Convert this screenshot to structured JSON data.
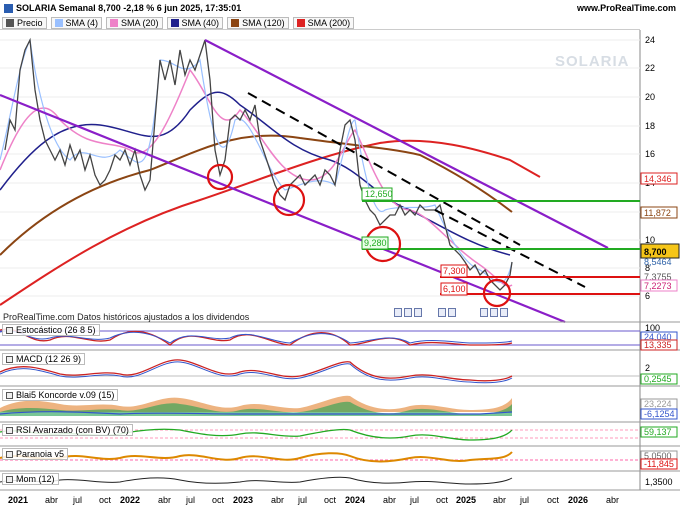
{
  "header": {
    "title": "SOLARIA Semanal 8,700 -2,18 % 6 jun 2025, 17:35:01",
    "site": "www.ProRealTime.com"
  },
  "legend": [
    {
      "label": "Precio",
      "color": "#555555"
    },
    {
      "label": "SMA (4)",
      "color": "#9ac0ff"
    },
    {
      "label": "SMA (20)",
      "color": "#ee82c8"
    },
    {
      "label": "SMA (40)",
      "color": "#20208c"
    },
    {
      "label": "SMA (120)",
      "color": "#8b4513"
    },
    {
      "label": "SMA (200)",
      "color": "#dd2222"
    }
  ],
  "watermark": "SOLARIA",
  "data_source": "ProRealTime.com Datos históricos ajustados a los dividendos",
  "price_axis": [
    "24",
    "22",
    "20",
    "18",
    "16",
    "14",
    "12",
    "10",
    "8",
    "6"
  ],
  "price_tags": {
    "last": "8,700",
    "sma4": "8,5464",
    "sma20": "7,2273",
    "sma20b": "7,3755",
    "sma200": "14,346",
    "sma120": "11,872"
  },
  "annotations": {
    "level_12650": "12,650",
    "level_9280": "9,280",
    "level_7300": "7,300",
    "level_6100": "6,100"
  },
  "panels": [
    {
      "title": "Estocástico (26 8 5)",
      "axis_top": "100",
      "value1": "24,040",
      "value2": "13,335"
    },
    {
      "title": "MACD (12 26 9)",
      "axis_top": "2",
      "value1": "0,2545"
    },
    {
      "title": "Blai5 Koncorde v.09 (15)",
      "value1": "23,224",
      "value2": "-6,1254"
    },
    {
      "title": "RSI Avanzado (con BV) (70)",
      "value1": "59,137"
    },
    {
      "title": "Paranoia v5",
      "value1": "5,0500",
      "value2": "-11,845"
    },
    {
      "title": "Mom (12)",
      "value1": "1,3500"
    }
  ],
  "time_axis": [
    "2021",
    "abr",
    "jul",
    "oct",
    "2022",
    "abr",
    "jul",
    "oct",
    "2023",
    "abr",
    "jul",
    "oct",
    "2024",
    "abr",
    "jul",
    "oct",
    "2025",
    "abr",
    "jul",
    "oct",
    "2026",
    "abr"
  ],
  "colors": {
    "channel": "#8a1ec8",
    "green_line": "#22aa22",
    "red_line": "#dd1111",
    "dashed": "#000000"
  }
}
